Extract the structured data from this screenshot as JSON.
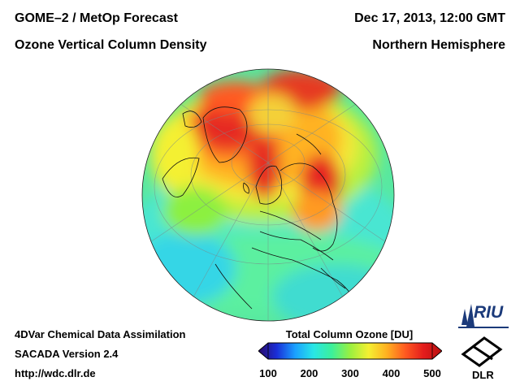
{
  "header": {
    "title_line1": "GOME–2 / MetOp Forecast",
    "title_line2": "Ozone Vertical Column Density",
    "date": "Dec 17, 2013, 12:00 GMT",
    "hemisphere": "Northern Hemisphere"
  },
  "footer": {
    "line1": "4DVar Chemical Data Assimilation",
    "line2": "SACADA Version 2.4",
    "line3": "http://wdc.dlr.de"
  },
  "colorbar": {
    "title": "Total Column Ozone [DU]",
    "ticks": [
      "100",
      "200",
      "300",
      "400",
      "500"
    ],
    "min": 100,
    "max": 500,
    "colors": [
      "#2a0a6a",
      "#1a2ed8",
      "#1aa0ff",
      "#28e6e6",
      "#3cf09a",
      "#9af040",
      "#f4f032",
      "#ffb020",
      "#ff5a20",
      "#e41c1c",
      "#b81010"
    ]
  },
  "logos": {
    "riu": "RIU",
    "dlr": "DLR"
  }
}
